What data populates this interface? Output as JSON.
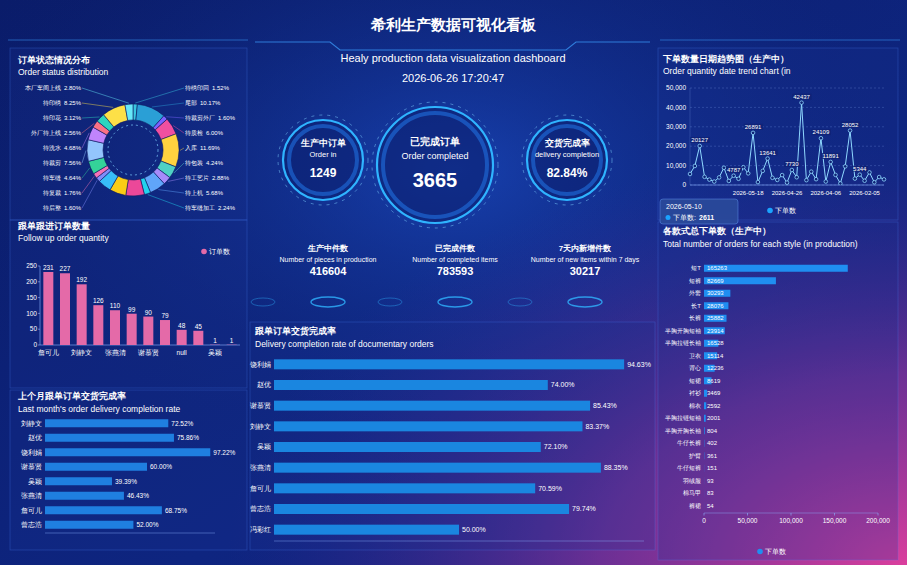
{
  "header": {
    "title": "希利生产数据可视化看板",
    "subtitle": "Healy production data visualization dashboard",
    "datetime": "2026-06-26 17:20:47"
  },
  "gauges": [
    {
      "label": "生产中订单",
      "label_en": "Order in",
      "value": 1249
    },
    {
      "label": "已完成订单",
      "label_en": "Order completed",
      "value": 3665
    },
    {
      "label": "交货完成率",
      "label_en": "delivery completion",
      "value": 82.84,
      "value_label": "82.84%"
    }
  ],
  "kpis": [
    {
      "label": "生产中件数",
      "label_en": "Number of pieces in production",
      "value": 416604
    },
    {
      "label": "已完成件数",
      "label_en": "Number of completed items",
      "value": 783593
    },
    {
      "label": "7天内新增件数",
      "label_en": "Number of new items within 7 days",
      "value": 30217
    }
  ],
  "chart_data": [
    {
      "type": "donut",
      "title": "订单状态情况分布",
      "subtitle": "Order status distribution",
      "categories": [
        "待绣印回",
        "尾部",
        "待裁剪外厂",
        "待质检",
        "入库",
        "待包装",
        "待工艺片",
        "待上机",
        "待车缝加工",
        null,
        null,
        null,
        "待后整",
        "待复裁",
        "待车缝",
        "待裁剪",
        "待洗水",
        "外厂待上线",
        "待印花",
        "待印绣",
        "本厂车间上线"
      ],
      "values": [
        1.52,
        10.17,
        1.6,
        6,
        11.69,
        4.24,
        2.88,
        5.68,
        2.24,
        6.5,
        5.8,
        4.71,
        1.6,
        1.76,
        4.64,
        7.56,
        4.68,
        2.56,
        3.12,
        8.25,
        2.8
      ],
      "value_labels": [
        "1.52%",
        "10.17%",
        "1.60%",
        "6.00%",
        "11.69%",
        "4.24%",
        "2.88%",
        "5.68%",
        "2.24%",
        null,
        null,
        null,
        "1.60%",
        "1.76%",
        "4.64%",
        "7.56%",
        "4.68%",
        "2.56%",
        "3.12%",
        "8.25%",
        "2.80%"
      ],
      "colors": [
        "#39c6e0",
        "#2a9fd6",
        "#7b61ff",
        "#f04fa0",
        "#ffd23f",
        "#4fd1c5",
        "#a78bfa",
        "#60a5fa",
        "#22d3ee",
        "#ec4899",
        "#facc15",
        "#38bdf8",
        "#818cf8",
        "#f472b6",
        "#34d399",
        "#93c5fd",
        "#c084fc",
        "#fb7185",
        "#2dd4bf",
        "#fde047",
        "#67e8f9"
      ],
      "data_labels": true
    },
    {
      "type": "bar",
      "title": "跟单跟进订单数量",
      "subtitle": "Follow up order quantity",
      "categories": [
        "詹可儿",
        null,
        "刘静文",
        null,
        "张燕清",
        null,
        "谢慕贤",
        null,
        "null",
        null,
        "吴颖",
        null
      ],
      "series": [
        {
          "name": "订单数",
          "color": "#e46aa8",
          "values": [
            231,
            227,
            192,
            126,
            110,
            99,
            90,
            79,
            48,
            45,
            1,
            1
          ]
        }
      ],
      "ylim": [
        0,
        250
      ],
      "yticks": [
        0,
        50,
        100,
        150,
        200,
        250
      ],
      "grid": false,
      "legend": "top-right",
      "data_labels": true
    },
    {
      "type": "bar",
      "orientation": "horizontal",
      "title": "上个月跟单订单交货完成率",
      "subtitle": "Last month's order delivery completion rate",
      "categories": [
        "刘静文",
        "赵优",
        "饶利娟",
        "谢慕贤",
        "吴颖",
        "张燕清",
        "詹可儿",
        "曾志浩"
      ],
      "values": [
        72.52,
        75.86,
        97.22,
        60,
        39.39,
        46.43,
        68.75,
        52
      ],
      "value_labels": [
        "72.52%",
        "75.86%",
        "97.22%",
        "60.00%",
        "39.39%",
        "46.43%",
        "68.75%",
        "52.00%"
      ],
      "color": "#1f7fe0",
      "xlim": [
        0,
        100
      ],
      "tick_labels": "y",
      "data_labels": true
    },
    {
      "type": "bar",
      "orientation": "horizontal",
      "title": "跟单订单交货完成率",
      "subtitle": "Delivery completion rate of documentary orders",
      "categories": [
        "饶利娟",
        "赵优",
        "谢慕贤",
        "刘静文",
        "吴颖",
        "张燕清",
        "詹可儿",
        "曾志浩",
        "冯彩红"
      ],
      "values": [
        94.63,
        74,
        85.43,
        83.37,
        72.1,
        88.35,
        70.59,
        79.74,
        50
      ],
      "value_labels": [
        "94.63%",
        "74.00%",
        "85.43%",
        "83.37%",
        "72.10%",
        "88.35%",
        "70.59%",
        "79.74%",
        "50.00%"
      ],
      "color": "#1a86e0",
      "xlim": [
        0,
        100
      ],
      "tick_labels": "y",
      "data_labels": true
    },
    {
      "type": "line",
      "title": "下单数量日期趋势图（生产中）",
      "subtitle": "Order quantity date trend chart (in",
      "categories": [
        null,
        null,
        null,
        null,
        null,
        null,
        null,
        null,
        null,
        null,
        null,
        null,
        "2026-05-18",
        null,
        null,
        null,
        null,
        null,
        null,
        null,
        "2026-04-26",
        null,
        null,
        null,
        null,
        null,
        null,
        null,
        "2026-04-06",
        null,
        null,
        null,
        null,
        null,
        null,
        null,
        "2026-02-05",
        null,
        null,
        null,
        null
      ],
      "series": [
        {
          "name": "下单数",
          "color": "#8fd8ff",
          "marker": "circle",
          "values": [
            5680,
            9800,
            20127,
            4200,
            2783,
            1783,
            3900,
            8900,
            2100,
            4787,
            3200,
            9179,
            6000,
            26891,
            1500,
            7290,
            13641,
            3700,
            2611,
            5105,
            1200,
            7730,
            4000,
            42437,
            2500,
            6886,
            3000,
            24109,
            1800,
            11891,
            5200,
            800,
            9600,
            28052,
            3300,
            5344,
            2200,
            6500,
            1400,
            4100,
            2900
          ],
          "value_labels": [
            null,
            null,
            "20127",
            null,
            null,
            null,
            null,
            null,
            null,
            "4787",
            null,
            null,
            null,
            "26891",
            null,
            null,
            "13641",
            null,
            null,
            null,
            null,
            "7730",
            null,
            "42437",
            null,
            null,
            null,
            "24109",
            null,
            "11891",
            null,
            null,
            null,
            "28052",
            null,
            "5344",
            null,
            null,
            null,
            null,
            null
          ]
        }
      ],
      "ylim": [
        0,
        50000
      ],
      "yticks": [
        0,
        {
          "value": 10000,
          "label": "10,000"
        },
        {
          "value": 20000,
          "label": "20,000"
        },
        {
          "value": 30000,
          "label": "30,000"
        },
        {
          "value": 40000,
          "label": "40,000"
        },
        {
          "value": 50000,
          "label": "50,000"
        }
      ],
      "grid": true,
      "legend": "bottom",
      "annotations": [
        {
          "x": "2026-05-10",
          "label": "下单数:",
          "value": 2611
        }
      ]
    },
    {
      "type": "bar",
      "orientation": "horizontal",
      "title": "各款式总下单数（生产中）",
      "subtitle": "Total number of orders for each style (in production)",
      "categories": [
        "短T",
        "短裤",
        "外套",
        "长T",
        "长裤",
        "半胸开胸短袖",
        "半胸拉链长袖",
        "卫衣",
        "背心",
        "短裙",
        "衬衫",
        "棉衣",
        "半胸拉链短袖",
        "半胸开胸长袖",
        "牛仔长裤",
        "护臂",
        "牛仔短裤",
        "羽绒服",
        "棉马甲",
        "裤裙"
      ],
      "series": [
        {
          "name": "下单数",
          "color": "#1f8ef1",
          "values": [
            165263,
            82669,
            30293,
            28076,
            25882,
            23914,
            16528,
            15114,
            12236,
            8619,
            3469,
            2592,
            2001,
            804,
            402,
            361,
            151,
            93,
            83,
            54
          ]
        }
      ],
      "xlim": [
        0,
        200000
      ],
      "xticks": [
        0,
        {
          "value": 50000,
          "label": "50,000"
        },
        {
          "value": 100000,
          "label": "100,000"
        },
        {
          "value": 150000,
          "label": "150,000"
        },
        {
          "value": 200000,
          "label": "200,000"
        }
      ],
      "grid": false,
      "legend": "bottom",
      "data_labels": true
    }
  ]
}
